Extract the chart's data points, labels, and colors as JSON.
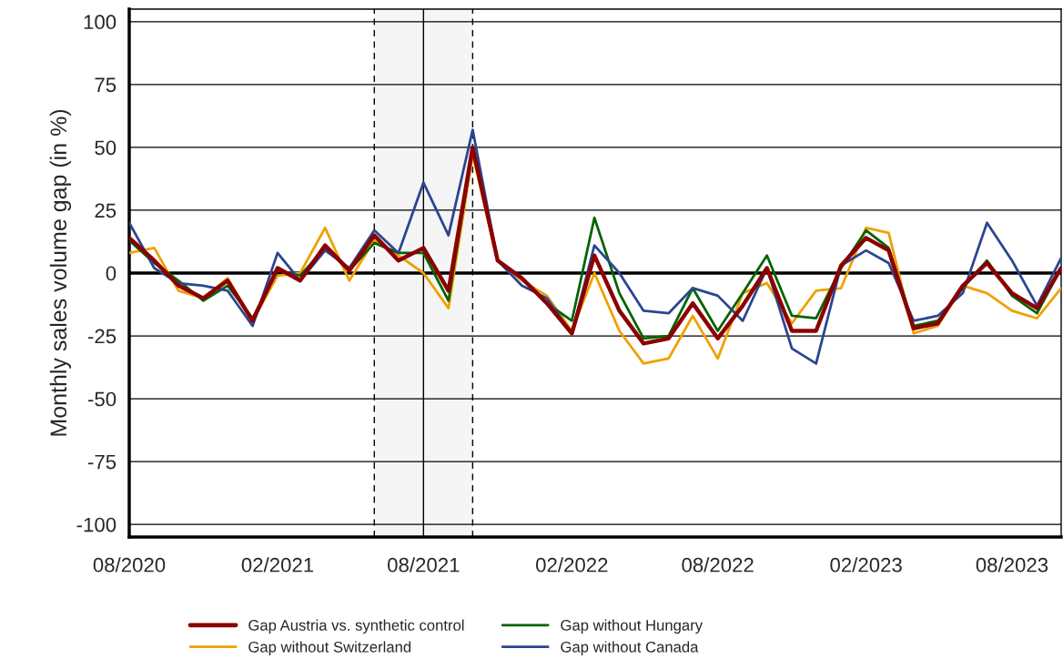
{
  "chart_data": {
    "type": "line",
    "ylabel": "Monthly sales volume gap (in %)",
    "x": [
      "2020-08",
      "2020-09",
      "2020-10",
      "2020-11",
      "2020-12",
      "2021-01",
      "2021-02",
      "2021-03",
      "2021-04",
      "2021-05",
      "2021-06",
      "2021-07",
      "2021-08",
      "2021-09",
      "2021-10",
      "2021-11",
      "2021-12",
      "2022-01",
      "2022-02",
      "2022-03",
      "2022-04",
      "2022-05",
      "2022-06",
      "2022-07",
      "2022-08",
      "2022-09",
      "2022-10",
      "2022-11",
      "2022-12",
      "2023-01",
      "2023-02",
      "2023-03",
      "2023-04",
      "2023-05",
      "2023-06",
      "2023-07",
      "2023-08",
      "2023-09",
      "2023-10"
    ],
    "series": [
      {
        "name": "Gap without Switzerland",
        "color": "#f0a000",
        "values": [
          8,
          10,
          -7,
          -10,
          -2,
          -19,
          -1,
          0,
          18,
          -3,
          13,
          7,
          0,
          -14,
          47,
          5,
          -3,
          -9,
          -23,
          0,
          -23,
          -36,
          -34,
          -17,
          -34,
          -8,
          -4,
          -20,
          -7,
          -6,
          18,
          16,
          -24,
          -21,
          -5,
          -8,
          -15,
          -18,
          -6
        ]
      },
      {
        "name": "Gap without Hungary",
        "color": "#006400",
        "values": [
          13,
          4,
          -3,
          -11,
          -5,
          -18,
          1,
          -1,
          10,
          1,
          12,
          8,
          8,
          -11,
          49,
          5,
          -2,
          -12,
          -19,
          22,
          -8,
          -26,
          -25,
          -6,
          -23,
          -8,
          7,
          -17,
          -18,
          2,
          17,
          10,
          -21,
          -19,
          -6,
          5,
          -9,
          -16,
          2
        ]
      },
      {
        "name": "Gap without Canada",
        "color": "#2b4590",
        "values": [
          20,
          2,
          -4,
          -5,
          -7,
          -21,
          8,
          -3,
          9,
          2,
          17,
          8,
          36,
          15,
          57,
          5,
          -5,
          -10,
          -24,
          11,
          0,
          -15,
          -16,
          -6,
          -9,
          -19,
          2,
          -30,
          -36,
          3,
          9,
          4,
          -19,
          -17,
          -8,
          20,
          5,
          -13,
          6
        ]
      },
      {
        "name": "Gap Austria vs. synthetic control",
        "color": "#8b0000",
        "values": [
          14,
          5,
          -5,
          -10,
          -3,
          -19,
          2,
          -3,
          11,
          1,
          15,
          5,
          10,
          -7,
          50,
          5,
          -2,
          -12,
          -24,
          7,
          -15,
          -28,
          -26,
          -12,
          -26,
          -13,
          2,
          -23,
          -23,
          3,
          14,
          9,
          -22,
          -20,
          -5,
          4,
          -8,
          -14,
          2
        ]
      }
    ],
    "xlim": [
      "2020-08",
      "2023-10"
    ],
    "xticks": [
      {
        "value": "2020-08",
        "label": "08/2020"
      },
      {
        "value": "2021-02",
        "label": "02/2021"
      },
      {
        "value": "2021-08",
        "label": "08/2021"
      },
      {
        "value": "2022-02",
        "label": "02/2022"
      },
      {
        "value": "2022-08",
        "label": "08/2022"
      },
      {
        "value": "2023-02",
        "label": "02/2023"
      },
      {
        "value": "2023-08",
        "label": "08/2023"
      }
    ],
    "ylim": [
      -105,
      105
    ],
    "yticks": [
      -100,
      -75,
      -50,
      -25,
      0,
      25,
      50,
      75,
      100
    ],
    "grid": "y",
    "legend": "bottom",
    "marker": "none",
    "line_style": "solid",
    "ref_lines": [
      {
        "axis": "y",
        "value": 0,
        "line_style": "solid"
      },
      {
        "axis": "x",
        "value": "2021-06",
        "line_style": "dashed"
      },
      {
        "axis": "x",
        "value": "2021-08",
        "line_style": "solid"
      },
      {
        "axis": "x",
        "value": "2021-10",
        "line_style": "dashed"
      }
    ],
    "bands": [
      {
        "axis": "x",
        "from": "2021-06",
        "to": "2021-10",
        "color": "#f5f5f5"
      }
    ]
  }
}
